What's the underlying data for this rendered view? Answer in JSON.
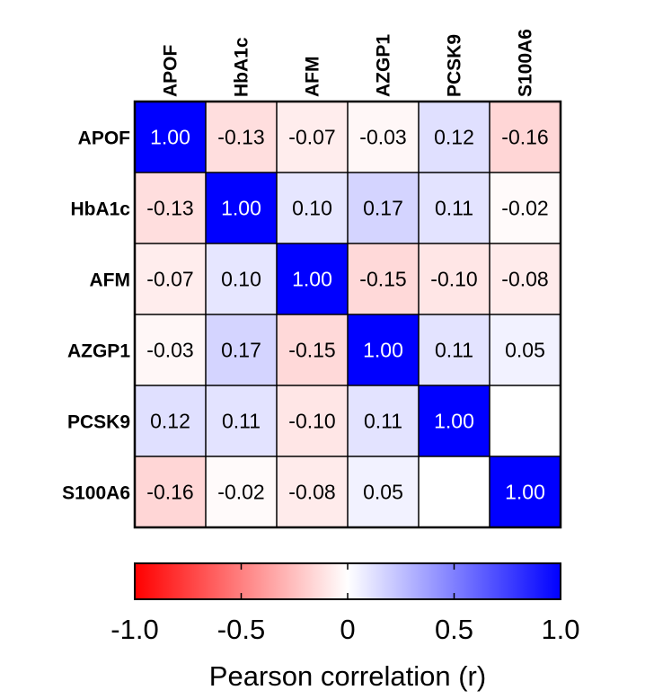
{
  "chart_data": {
    "type": "heatmap",
    "x_labels": [
      "APOF",
      "HbA1c",
      "AFM",
      "AZGP1",
      "PCSK9",
      "S100A6"
    ],
    "y_labels": [
      "APOF",
      "HbA1c",
      "AFM",
      "AZGP1",
      "PCSK9",
      "S100A6"
    ],
    "values": [
      [
        1.0,
        -0.13,
        -0.07,
        -0.03,
        0.12,
        -0.16
      ],
      [
        -0.13,
        1.0,
        0.1,
        0.17,
        0.11,
        -0.02
      ],
      [
        -0.07,
        0.1,
        1.0,
        -0.15,
        -0.1,
        -0.08
      ],
      [
        -0.03,
        0.17,
        -0.15,
        1.0,
        0.11,
        0.05
      ],
      [
        0.12,
        0.11,
        -0.1,
        0.11,
        1.0,
        null
      ],
      [
        -0.16,
        -0.02,
        -0.08,
        0.05,
        null,
        1.0
      ]
    ],
    "value_labels": [
      [
        "1.00",
        "-0.13",
        "-0.07",
        "-0.03",
        "0.12",
        "-0.16"
      ],
      [
        "-0.13",
        "1.00",
        "0.10",
        "0.17",
        "0.11",
        "-0.02"
      ],
      [
        "-0.07",
        "0.10",
        "1.00",
        "-0.15",
        "-0.10",
        "-0.08"
      ],
      [
        "-0.03",
        "0.17",
        "-0.15",
        "1.00",
        "0.11",
        "0.05"
      ],
      [
        "0.12",
        "0.11",
        "-0.10",
        "0.11",
        "1.00",
        ""
      ],
      [
        "-0.16",
        "-0.02",
        "-0.08",
        "0.05",
        "",
        "1.00"
      ]
    ],
    "colorbar": {
      "range": [
        -1.0,
        1.0
      ],
      "ticks": [
        -1.0,
        -0.5,
        0,
        0.5,
        1.0
      ],
      "tick_labels": [
        "-1.0",
        "-0.5",
        "0",
        "0.5",
        "1.0"
      ],
      "title": "Pearson correlation (r)",
      "colors": {
        "negative": "#ff0000",
        "zero": "#ffffff",
        "positive": "#0000ff"
      }
    }
  }
}
